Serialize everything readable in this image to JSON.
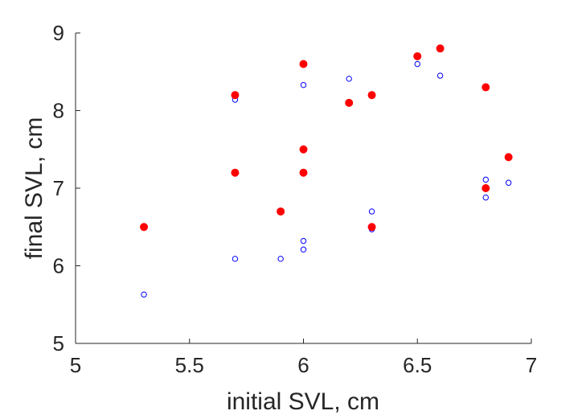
{
  "chart_data": {
    "type": "scatter",
    "title": "",
    "xlabel": "initial SVL, cm",
    "ylabel": "final SVL, cm",
    "xlim": [
      5,
      7
    ],
    "ylim": [
      5,
      9
    ],
    "xticks": [
      5,
      5.5,
      6,
      6.5,
      7
    ],
    "yticks": [
      5,
      6,
      7,
      8,
      9
    ],
    "xtick_labels": [
      "5",
      "5.5",
      "6",
      "6.5",
      "7"
    ],
    "ytick_labels": [
      "5",
      "6",
      "7",
      "8",
      "9"
    ],
    "grid": false,
    "legend": "none",
    "series": [
      {
        "marker": "open-circle",
        "color": "#0000ff",
        "points": [
          {
            "x": 5.3,
            "y": 5.63
          },
          {
            "x": 5.7,
            "y": 6.09
          },
          {
            "x": 5.7,
            "y": 8.14
          },
          {
            "x": 5.9,
            "y": 6.09
          },
          {
            "x": 6.0,
            "y": 6.21
          },
          {
            "x": 6.0,
            "y": 6.32
          },
          {
            "x": 6.0,
            "y": 8.33
          },
          {
            "x": 6.2,
            "y": 8.41
          },
          {
            "x": 6.3,
            "y": 6.47
          },
          {
            "x": 6.3,
            "y": 6.7
          },
          {
            "x": 6.5,
            "y": 8.6
          },
          {
            "x": 6.6,
            "y": 8.45
          },
          {
            "x": 6.8,
            "y": 6.88
          },
          {
            "x": 6.8,
            "y": 7.11
          },
          {
            "x": 6.9,
            "y": 7.07
          }
        ]
      },
      {
        "marker": "filled-circle",
        "color": "#ff0000",
        "points": [
          {
            "x": 5.3,
            "y": 6.5
          },
          {
            "x": 5.7,
            "y": 7.2
          },
          {
            "x": 5.7,
            "y": 8.2
          },
          {
            "x": 5.9,
            "y": 6.7
          },
          {
            "x": 6.0,
            "y": 7.2
          },
          {
            "x": 6.0,
            "y": 7.5
          },
          {
            "x": 6.0,
            "y": 8.6
          },
          {
            "x": 6.2,
            "y": 8.1
          },
          {
            "x": 6.3,
            "y": 6.5
          },
          {
            "x": 6.3,
            "y": 8.2
          },
          {
            "x": 6.5,
            "y": 8.7
          },
          {
            "x": 6.6,
            "y": 8.8
          },
          {
            "x": 6.8,
            "y": 7.0
          },
          {
            "x": 6.8,
            "y": 8.3
          },
          {
            "x": 6.9,
            "y": 7.4
          }
        ]
      }
    ]
  }
}
